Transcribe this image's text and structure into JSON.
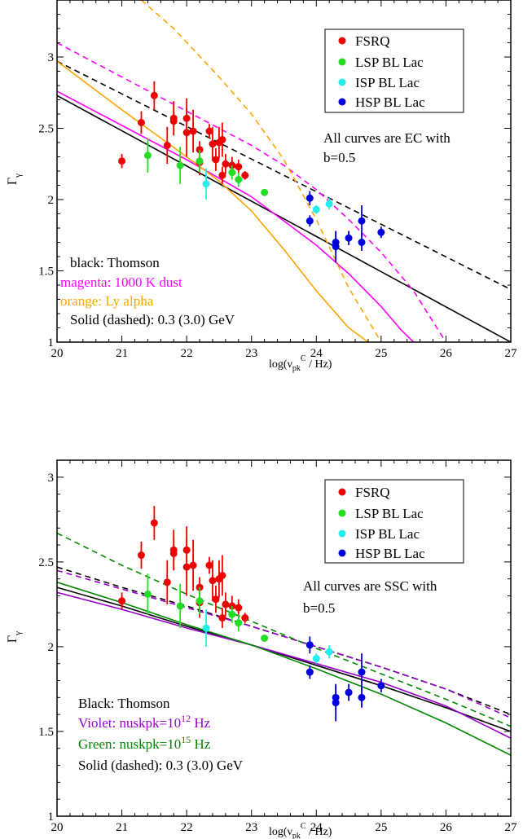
{
  "chart_data": [
    {
      "type": "scatter",
      "panel": "top",
      "xlabel": "log(ν",
      "xlabel_sub": "pk",
      "xlabel_sup": "C",
      "xlabel_tail": " / Hz)",
      "ylabel": "Γ",
      "ylabel_sub": "γ",
      "xlim": [
        20,
        27
      ],
      "ylim": [
        1,
        3.4
      ],
      "x_ticks": [
        "20",
        "21",
        "22",
        "23",
        "24",
        "25",
        "26",
        "27"
      ],
      "y_ticks": [
        "1",
        "1.5",
        "2",
        "2.5",
        "3"
      ],
      "legend": {
        "position": "top-right",
        "entries": [
          {
            "label": "FSRQ",
            "color": "#ee0000"
          },
          {
            "label": "LSP BL Lac",
            "color": "#22dd22"
          },
          {
            "label": "ISP BL Lac",
            "color": "#22eeee"
          },
          {
            "label": "HSP BL Lac",
            "color": "#0000dd"
          }
        ]
      },
      "annotations": {
        "note_line1": "All curves are EC with",
        "note_line2": "b=0.5",
        "key1": "black:  Thomson",
        "key2": "magenta:  1000 K dust",
        "key3": "orange:  Ly alpha",
        "key4": "Solid (dashed):  0.3 (3.0) GeV"
      },
      "series": [
        {
          "group": "FSRQ",
          "color": "#ee0000",
          "points": [
            {
              "x": 21.0,
              "y": 2.27,
              "err": 0.05
            },
            {
              "x": 21.3,
              "y": 2.54,
              "err": 0.08
            },
            {
              "x": 21.5,
              "y": 2.73,
              "err": 0.1
            },
            {
              "x": 21.7,
              "y": 2.38,
              "err": 0.13
            },
            {
              "x": 21.8,
              "y": 2.55,
              "err": 0.1
            },
            {
              "x": 21.8,
              "y": 2.57,
              "err": 0.12
            },
            {
              "x": 22.0,
              "y": 2.57,
              "err": 0.14
            },
            {
              "x": 22.0,
              "y": 2.47,
              "err": 0.17
            },
            {
              "x": 22.1,
              "y": 2.48,
              "err": 0.15
            },
            {
              "x": 22.2,
              "y": 2.35,
              "err": 0.06
            },
            {
              "x": 22.2,
              "y": 2.26,
              "err": 0.09
            },
            {
              "x": 22.35,
              "y": 2.48,
              "err": 0.05
            },
            {
              "x": 22.4,
              "y": 2.39,
              "err": 0.12
            },
            {
              "x": 22.45,
              "y": 2.28,
              "err": 0.08
            },
            {
              "x": 22.5,
              "y": 2.4,
              "err": 0.11
            },
            {
              "x": 22.55,
              "y": 2.42,
              "err": 0.12
            },
            {
              "x": 22.55,
              "y": 2.17,
              "err": 0.06
            },
            {
              "x": 22.6,
              "y": 2.25,
              "err": 0.07
            },
            {
              "x": 22.7,
              "y": 2.24,
              "err": 0.06
            },
            {
              "x": 22.8,
              "y": 2.23,
              "err": 0.05
            },
            {
              "x": 22.9,
              "y": 2.17,
              "err": 0.03
            }
          ]
        },
        {
          "group": "LSP BL Lac",
          "color": "#22dd22",
          "points": [
            {
              "x": 21.4,
              "y": 2.31,
              "err": 0.12
            },
            {
              "x": 21.9,
              "y": 2.24,
              "err": 0.13
            },
            {
              "x": 22.2,
              "y": 2.27,
              "err": 0.08
            },
            {
              "x": 22.7,
              "y": 2.19,
              "err": 0.05
            },
            {
              "x": 22.8,
              "y": 2.14,
              "err": 0.05
            },
            {
              "x": 23.2,
              "y": 2.05,
              "err": 0.0
            }
          ]
        },
        {
          "group": "ISP BL Lac",
          "color": "#22eeee",
          "points": [
            {
              "x": 22.3,
              "y": 2.11,
              "err": 0.11
            },
            {
              "x": 24.0,
              "y": 1.93,
              "err": 0.03
            },
            {
              "x": 24.2,
              "y": 1.97,
              "err": 0.04
            }
          ]
        },
        {
          "group": "HSP BL Lac",
          "color": "#0000dd",
          "points": [
            {
              "x": 23.9,
              "y": 1.85,
              "err": 0.04
            },
            {
              "x": 23.9,
              "y": 2.01,
              "err": 0.05
            },
            {
              "x": 24.3,
              "y": 1.7,
              "err": 0.07
            },
            {
              "x": 24.3,
              "y": 1.67,
              "err": 0.11
            },
            {
              "x": 24.5,
              "y": 1.73,
              "err": 0.05
            },
            {
              "x": 24.7,
              "y": 1.85,
              "err": 0.11
            },
            {
              "x": 24.7,
              "y": 1.7,
              "err": 0.06
            },
            {
              "x": 25.0,
              "y": 1.77,
              "err": 0.04
            }
          ]
        }
      ],
      "curves": [
        {
          "color": "#000000",
          "style": "solid",
          "x": [
            20,
            27
          ],
          "y": [
            2.73,
            1.0
          ]
        },
        {
          "color": "#000000",
          "style": "dashed",
          "x": [
            20,
            27
          ],
          "y": [
            2.97,
            1.37
          ]
        },
        {
          "color": "#ff00ff",
          "style": "solid",
          "x": [
            20,
            21,
            22,
            23,
            24,
            24.5,
            25,
            25.3,
            25.5
          ],
          "y": [
            2.76,
            2.52,
            2.28,
            2.02,
            1.68,
            1.48,
            1.25,
            1.09,
            1.0
          ]
        },
        {
          "color": "#ff00ff",
          "style": "dashed",
          "x": [
            20,
            21,
            22,
            23,
            23.5,
            24,
            24.5,
            25,
            25.5,
            26
          ],
          "y": [
            3.1,
            2.86,
            2.62,
            2.38,
            2.24,
            2.07,
            1.86,
            1.63,
            1.36,
            1.0
          ]
        },
        {
          "color": "#ffa500",
          "style": "solid",
          "x": [
            20,
            21,
            22,
            22.5,
            23,
            23.5,
            24,
            24.5,
            24.8
          ],
          "y": [
            2.97,
            2.63,
            2.3,
            2.13,
            1.92,
            1.65,
            1.36,
            1.1,
            1.0
          ]
        },
        {
          "color": "#ffa500",
          "style": "dashed",
          "x": [
            21.3,
            21.8,
            22.5,
            23,
            23.5,
            24,
            24.5,
            25
          ],
          "y": [
            3.4,
            3.2,
            2.86,
            2.6,
            2.28,
            1.86,
            1.38,
            1.0
          ]
        }
      ]
    },
    {
      "type": "scatter",
      "panel": "bottom",
      "xlabel": "log(ν",
      "xlabel_sub": "pk",
      "xlabel_sup": "C",
      "xlabel_tail": " / Hz)",
      "ylabel": "Γ",
      "ylabel_sub": "γ",
      "xlim": [
        20,
        27
      ],
      "ylim": [
        1,
        3.1
      ],
      "x_ticks": [
        "20",
        "21",
        "22",
        "23",
        "24",
        "25",
        "26",
        "27"
      ],
      "y_ticks": [
        "1",
        "1.5",
        "2",
        "2.5",
        "3"
      ],
      "legend": {
        "position": "top-right",
        "entries": [
          {
            "label": "FSRQ",
            "color": "#ee0000"
          },
          {
            "label": "LSP BL Lac",
            "color": "#22dd22"
          },
          {
            "label": "ISP BL Lac",
            "color": "#22eeee"
          },
          {
            "label": "HSP BL Lac",
            "color": "#0000dd"
          }
        ]
      },
      "annotations": {
        "note_line1": "All curves are SSC with",
        "note_line2": "b=0.5",
        "key1": "Black:  Thomson",
        "key2_a": "Violet:  nuskpk=10",
        "key2_sup": "12",
        "key2_b": " Hz",
        "key3_a": "Green:  nuskpk=10",
        "key3_sup": "15",
        "key3_b": " Hz",
        "key4": "Solid (dashed):  0.3 (3.0) GeV"
      },
      "series": [
        {
          "group": "FSRQ",
          "color": "#ee0000",
          "points": [
            {
              "x": 21.0,
              "y": 2.27,
              "err": 0.05
            },
            {
              "x": 21.3,
              "y": 2.54,
              "err": 0.08
            },
            {
              "x": 21.5,
              "y": 2.73,
              "err": 0.1
            },
            {
              "x": 21.7,
              "y": 2.38,
              "err": 0.13
            },
            {
              "x": 21.8,
              "y": 2.55,
              "err": 0.1
            },
            {
              "x": 21.8,
              "y": 2.57,
              "err": 0.12
            },
            {
              "x": 22.0,
              "y": 2.57,
              "err": 0.14
            },
            {
              "x": 22.0,
              "y": 2.47,
              "err": 0.17
            },
            {
              "x": 22.1,
              "y": 2.48,
              "err": 0.15
            },
            {
              "x": 22.2,
              "y": 2.35,
              "err": 0.06
            },
            {
              "x": 22.2,
              "y": 2.26,
              "err": 0.09
            },
            {
              "x": 22.35,
              "y": 2.48,
              "err": 0.05
            },
            {
              "x": 22.4,
              "y": 2.39,
              "err": 0.12
            },
            {
              "x": 22.45,
              "y": 2.28,
              "err": 0.08
            },
            {
              "x": 22.5,
              "y": 2.4,
              "err": 0.11
            },
            {
              "x": 22.55,
              "y": 2.42,
              "err": 0.12
            },
            {
              "x": 22.55,
              "y": 2.17,
              "err": 0.06
            },
            {
              "x": 22.6,
              "y": 2.25,
              "err": 0.07
            },
            {
              "x": 22.7,
              "y": 2.24,
              "err": 0.06
            },
            {
              "x": 22.8,
              "y": 2.23,
              "err": 0.05
            },
            {
              "x": 22.9,
              "y": 2.17,
              "err": 0.03
            }
          ]
        },
        {
          "group": "LSP BL Lac",
          "color": "#22dd22",
          "points": [
            {
              "x": 21.4,
              "y": 2.31,
              "err": 0.12
            },
            {
              "x": 21.9,
              "y": 2.24,
              "err": 0.13
            },
            {
              "x": 22.2,
              "y": 2.27,
              "err": 0.08
            },
            {
              "x": 22.7,
              "y": 2.19,
              "err": 0.05
            },
            {
              "x": 22.8,
              "y": 2.14,
              "err": 0.05
            },
            {
              "x": 23.2,
              "y": 2.05,
              "err": 0.0
            }
          ]
        },
        {
          "group": "ISP BL Lac",
          "color": "#22eeee",
          "points": [
            {
              "x": 22.3,
              "y": 2.11,
              "err": 0.11
            },
            {
              "x": 24.0,
              "y": 1.93,
              "err": 0.03
            },
            {
              "x": 24.2,
              "y": 1.97,
              "err": 0.04
            }
          ]
        },
        {
          "group": "HSP BL Lac",
          "color": "#0000dd",
          "points": [
            {
              "x": 23.9,
              "y": 1.85,
              "err": 0.04
            },
            {
              "x": 23.9,
              "y": 2.01,
              "err": 0.05
            },
            {
              "x": 24.3,
              "y": 1.7,
              "err": 0.07
            },
            {
              "x": 24.3,
              "y": 1.67,
              "err": 0.11
            },
            {
              "x": 24.5,
              "y": 1.73,
              "err": 0.05
            },
            {
              "x": 24.7,
              "y": 1.85,
              "err": 0.11
            },
            {
              "x": 24.7,
              "y": 1.7,
              "err": 0.06
            },
            {
              "x": 25.0,
              "y": 1.77,
              "err": 0.04
            }
          ]
        }
      ],
      "curves": [
        {
          "color": "#000000",
          "style": "solid",
          "x": [
            20,
            21,
            22,
            23,
            24,
            25,
            26,
            27
          ],
          "y": [
            2.35,
            2.24,
            2.12,
            2.01,
            1.89,
            1.77,
            1.64,
            1.5
          ]
        },
        {
          "color": "#000000",
          "style": "dashed",
          "x": [
            20,
            21,
            22,
            23,
            24,
            25,
            26,
            27
          ],
          "y": [
            2.47,
            2.35,
            2.24,
            2.12,
            2.0,
            1.88,
            1.75,
            1.6
          ]
        },
        {
          "color": "#9900cc",
          "style": "solid",
          "x": [
            20,
            21,
            22,
            23,
            24,
            25,
            26,
            27
          ],
          "y": [
            2.32,
            2.22,
            2.11,
            2.01,
            1.9,
            1.79,
            1.65,
            1.46
          ]
        },
        {
          "color": "#9900cc",
          "style": "dashed",
          "x": [
            20,
            21,
            22,
            23,
            24,
            25,
            26,
            27
          ],
          "y": [
            2.45,
            2.34,
            2.23,
            2.12,
            2.0,
            1.88,
            1.75,
            1.58
          ]
        },
        {
          "color": "#008800",
          "style": "solid",
          "x": [
            20,
            21,
            22,
            23,
            24,
            25,
            26,
            27
          ],
          "y": [
            2.38,
            2.26,
            2.13,
            2.01,
            1.87,
            1.72,
            1.55,
            1.36
          ]
        },
        {
          "color": "#008800",
          "style": "dashed",
          "x": [
            20,
            21,
            22,
            23,
            24,
            25,
            26,
            27
          ],
          "y": [
            2.67,
            2.48,
            2.31,
            2.15,
            1.99,
            1.84,
            1.69,
            1.53
          ]
        }
      ]
    }
  ]
}
